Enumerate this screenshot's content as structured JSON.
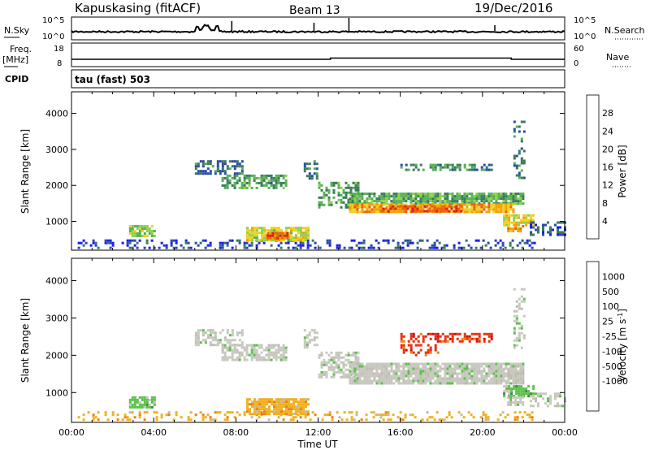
{
  "header": {
    "station": "Kapuskasing (fitACF)",
    "beam": "Beam 13",
    "date": "19/Dec/2016",
    "cpid_label": "CPID",
    "cpid_text": "tau (fast) 503"
  },
  "noise_panel": {
    "left_label": "N.Sky",
    "right_label": "N.Search",
    "left_ticks": [
      "10^5",
      "10^0"
    ],
    "right_ticks": [
      "10^5",
      "10^0"
    ]
  },
  "freq_panel": {
    "left_label_1": "Freq.",
    "left_label_2": "[MHz]",
    "right_label": "Nave",
    "left_ticks": [
      "18",
      "8"
    ],
    "right_ticks": [
      "60",
      "0"
    ]
  },
  "colors": {
    "power_scale": [
      "#1a1aff",
      "#2a4aa8",
      "#3a7a5a",
      "#55b055",
      "#8fd14a",
      "#f0d020",
      "#f5a000",
      "#ee6010",
      "#e02010"
    ],
    "velocity_scale": [
      "#2030c0",
      "#3a6fa0",
      "#3d8a4a",
      "#5bc24a",
      "#c8c8c0",
      "#bdbdb0",
      "#f0b020",
      "#f08010",
      "#e83010",
      "#d01010"
    ]
  },
  "chart_data": [
    {
      "type": "heatmap",
      "name": "power",
      "ylabel": "Slant Range [km]",
      "y_ticks": [
        "1000",
        "2000",
        "3000",
        "4000"
      ],
      "ylim": [
        200,
        4600
      ],
      "xlim": [
        0,
        24
      ],
      "x_ticks": [
        "00:00",
        "04:00",
        "08:00",
        "12:00",
        "16:00",
        "20:00",
        "00:00"
      ],
      "colorbar_label": "Power [dB]",
      "colorbar_ticks": [
        "4",
        "8",
        "12",
        "16",
        "20",
        "24",
        "28"
      ],
      "colorbar_range": [
        0,
        32
      ],
      "regions": [
        {
          "t0": 0.3,
          "t1": 22.5,
          "r0": 250,
          "r1": 500,
          "v": 5,
          "density": 0.35
        },
        {
          "t0": 2.8,
          "t1": 4.0,
          "r0": 600,
          "r1": 900,
          "v": 15,
          "density": 0.85
        },
        {
          "t0": 6.0,
          "t1": 8.3,
          "r0": 2300,
          "r1": 2700,
          "v": 8,
          "density": 0.6
        },
        {
          "t0": 7.3,
          "t1": 10.5,
          "r0": 1900,
          "r1": 2300,
          "v": 11,
          "density": 0.7
        },
        {
          "t0": 8.5,
          "t1": 11.5,
          "r0": 450,
          "r1": 850,
          "v": 18,
          "density": 0.85
        },
        {
          "t0": 9.5,
          "t1": 10.5,
          "r0": 550,
          "r1": 700,
          "v": 27,
          "density": 0.9
        },
        {
          "t0": 11.3,
          "t1": 12.0,
          "r0": 2200,
          "r1": 2700,
          "v": 9,
          "density": 0.5
        },
        {
          "t0": 12.0,
          "t1": 14.0,
          "r0": 1400,
          "r1": 2100,
          "v": 11,
          "density": 0.55
        },
        {
          "t0": 13.5,
          "t1": 22.0,
          "r0": 1500,
          "r1": 1800,
          "v": 12,
          "density": 0.85
        },
        {
          "t0": 13.5,
          "t1": 21.5,
          "r0": 1250,
          "r1": 1500,
          "v": 22,
          "density": 0.9
        },
        {
          "t0": 15.0,
          "t1": 19.0,
          "r0": 1300,
          "r1": 1450,
          "v": 27,
          "density": 0.7
        },
        {
          "t0": 16.0,
          "t1": 20.5,
          "r0": 2400,
          "r1": 2600,
          "v": 9,
          "density": 0.5
        },
        {
          "t0": 21.0,
          "t1": 22.5,
          "r0": 900,
          "r1": 1200,
          "v": 19,
          "density": 0.8
        },
        {
          "t0": 21.2,
          "t1": 22.0,
          "r0": 700,
          "r1": 900,
          "v": 24,
          "density": 0.8
        },
        {
          "t0": 21.5,
          "t1": 22.0,
          "r0": 2200,
          "r1": 3800,
          "v": 8,
          "density": 0.35
        },
        {
          "t0": 22.3,
          "t1": 24.0,
          "r0": 650,
          "r1": 1000,
          "v": 6,
          "density": 0.5
        }
      ]
    },
    {
      "type": "heatmap",
      "name": "velocity",
      "ylabel": "Slant Range [km]",
      "y_ticks": [
        "1000",
        "2000",
        "3000",
        "4000"
      ],
      "ylim": [
        200,
        4600
      ],
      "xlim": [
        0,
        24
      ],
      "x_ticks": [
        "00:00",
        "04:00",
        "08:00",
        "12:00",
        "16:00",
        "20:00",
        "00:00"
      ],
      "xlabel": "Time UT",
      "colorbar_label": "Velocity [m s",
      "colorbar_label_sup": "-1",
      "colorbar_label_end": "]",
      "colorbar_ticks": [
        "1000",
        "500",
        "100",
        "25",
        "-25",
        "-100",
        "-500",
        "-1000"
      ],
      "regions": [
        {
          "t0": 0.3,
          "t1": 22.5,
          "r0": 250,
          "r1": 500,
          "c": 6,
          "density": 0.3
        },
        {
          "t0": 2.8,
          "t1": 4.0,
          "r0": 600,
          "r1": 900,
          "c": 3,
          "density": 0.85
        },
        {
          "t0": 6.0,
          "t1": 8.3,
          "r0": 2300,
          "r1": 2700,
          "c": 4,
          "density": 0.6
        },
        {
          "t0": 7.3,
          "t1": 10.5,
          "r0": 1900,
          "r1": 2300,
          "c": 4,
          "density": 0.7
        },
        {
          "t0": 8.5,
          "t1": 11.5,
          "r0": 450,
          "r1": 850,
          "c": 6,
          "density": 0.85
        },
        {
          "t0": 11.3,
          "t1": 12.0,
          "r0": 2200,
          "r1": 2700,
          "c": 4,
          "density": 0.5
        },
        {
          "t0": 12.0,
          "t1": 14.0,
          "r0": 1400,
          "r1": 2100,
          "c": 4,
          "density": 0.55
        },
        {
          "t0": 13.5,
          "t1": 22.0,
          "r0": 1250,
          "r1": 1800,
          "c": 4,
          "density": 0.9
        },
        {
          "t0": 16.0,
          "t1": 20.5,
          "r0": 2400,
          "r1": 2600,
          "c": 8,
          "density": 0.5
        },
        {
          "t0": 16.0,
          "t1": 18.0,
          "r0": 2000,
          "r1": 2300,
          "c": 8,
          "density": 0.4
        },
        {
          "t0": 21.0,
          "t1": 22.5,
          "r0": 900,
          "r1": 1200,
          "c": 3,
          "density": 0.7
        },
        {
          "t0": 21.2,
          "t1": 22.0,
          "r0": 700,
          "r1": 900,
          "c": 4,
          "density": 0.8
        },
        {
          "t0": 21.5,
          "t1": 22.0,
          "r0": 2200,
          "r1": 3800,
          "c": 4,
          "density": 0.35
        },
        {
          "t0": 22.3,
          "t1": 24.0,
          "r0": 650,
          "r1": 1000,
          "c": 4,
          "density": 0.5
        }
      ]
    }
  ]
}
